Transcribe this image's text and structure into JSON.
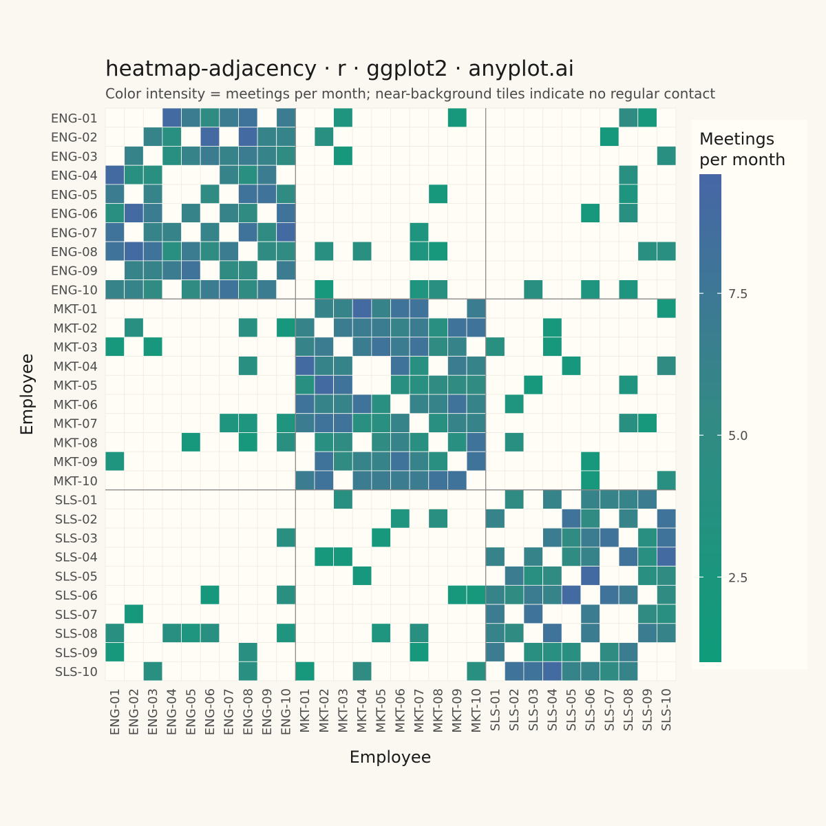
{
  "chart_data": {
    "type": "heatmap",
    "title": "heatmap-adjacency · r · ggplot2 · anyplot.ai",
    "subtitle": "Color intensity = meetings per month; near-background tiles indicate no regular contact",
    "xlabel": "Employee",
    "ylabel": "Employee",
    "labels": [
      "ENG-01",
      "ENG-02",
      "ENG-03",
      "ENG-04",
      "ENG-05",
      "ENG-06",
      "ENG-07",
      "ENG-08",
      "ENG-09",
      "ENG-10",
      "MKT-01",
      "MKT-02",
      "MKT-03",
      "MKT-04",
      "MKT-05",
      "MKT-06",
      "MKT-07",
      "MKT-08",
      "MKT-09",
      "MKT-10",
      "SLS-01",
      "SLS-02",
      "SLS-03",
      "SLS-04",
      "SLS-05",
      "SLS-06",
      "SLS-07",
      "SLS-08",
      "SLS-09",
      "SLS-10"
    ],
    "matrix": [
      [
        0,
        0,
        0,
        9,
        7,
        5,
        7,
        8,
        0,
        7,
        0,
        0,
        3,
        0,
        0,
        0,
        0,
        0,
        2,
        0,
        0,
        0,
        0,
        0,
        0,
        0,
        0,
        5,
        2,
        0
      ],
      [
        0,
        0,
        6,
        4,
        0,
        9,
        0,
        9,
        6,
        6,
        0,
        4,
        0,
        0,
        0,
        0,
        0,
        0,
        0,
        0,
        0,
        0,
        0,
        0,
        0,
        0,
        2,
        0,
        0,
        0
      ],
      [
        0,
        6,
        0,
        4,
        6,
        7,
        6,
        7,
        6,
        5,
        0,
        0,
        2,
        0,
        0,
        0,
        0,
        0,
        0,
        0,
        0,
        0,
        0,
        0,
        0,
        0,
        0,
        0,
        0,
        4
      ],
      [
        9,
        4,
        4,
        0,
        0,
        0,
        6,
        4,
        7,
        0,
        0,
        0,
        0,
        0,
        0,
        0,
        0,
        0,
        0,
        0,
        0,
        0,
        0,
        0,
        0,
        0,
        0,
        4,
        0,
        0
      ],
      [
        7,
        0,
        6,
        0,
        0,
        5,
        0,
        8,
        8,
        5,
        0,
        0,
        0,
        0,
        0,
        0,
        0,
        2,
        0,
        0,
        0,
        0,
        0,
        0,
        0,
        0,
        0,
        3,
        0,
        0
      ],
      [
        4,
        9,
        7,
        0,
        6,
        0,
        6,
        5,
        0,
        8,
        0,
        0,
        0,
        0,
        0,
        0,
        0,
        0,
        0,
        0,
        0,
        0,
        0,
        0,
        0,
        2,
        0,
        4,
        0,
        0
      ],
      [
        8,
        0,
        6,
        6,
        0,
        6,
        0,
        8,
        5,
        9,
        0,
        0,
        0,
        0,
        0,
        0,
        3,
        0,
        0,
        0,
        0,
        0,
        0,
        0,
        0,
        0,
        0,
        0,
        0,
        0
      ],
      [
        8,
        9,
        8,
        4,
        7,
        5,
        7,
        0,
        5,
        5,
        0,
        4,
        0,
        4,
        0,
        0,
        3,
        2,
        0,
        0,
        0,
        0,
        0,
        0,
        0,
        0,
        0,
        0,
        4,
        4
      ],
      [
        0,
        6,
        6,
        7,
        8,
        0,
        5,
        5,
        0,
        7,
        0,
        0,
        0,
        0,
        0,
        0,
        0,
        0,
        0,
        0,
        0,
        0,
        0,
        0,
        0,
        0,
        0,
        0,
        0,
        0
      ],
      [
        6,
        6,
        5,
        0,
        5,
        7,
        8,
        5,
        7,
        0,
        0,
        2,
        0,
        0,
        0,
        0,
        3,
        4,
        0,
        0,
        0,
        0,
        4,
        0,
        0,
        3,
        0,
        3,
        0,
        0
      ],
      [
        0,
        0,
        0,
        0,
        0,
        0,
        0,
        0,
        0,
        0,
        0,
        6,
        6,
        9,
        6,
        8,
        8,
        0,
        0,
        7,
        0,
        0,
        0,
        0,
        0,
        0,
        0,
        0,
        0,
        2
      ],
      [
        0,
        4,
        0,
        0,
        0,
        0,
        0,
        4,
        0,
        2,
        6,
        0,
        7,
        7,
        7,
        6,
        7,
        4,
        8,
        8,
        0,
        0,
        0,
        2,
        0,
        0,
        0,
        0,
        0,
        0
      ],
      [
        2,
        0,
        2,
        0,
        0,
        0,
        0,
        0,
        0,
        0,
        6,
        7,
        0,
        7,
        8,
        7,
        8,
        5,
        6,
        0,
        4,
        0,
        0,
        2,
        0,
        0,
        0,
        0,
        0,
        0
      ],
      [
        0,
        0,
        0,
        0,
        0,
        0,
        0,
        4,
        0,
        0,
        9,
        6,
        6,
        0,
        0,
        8,
        4,
        0,
        7,
        6,
        0,
        0,
        0,
        0,
        2,
        0,
        0,
        0,
        0,
        5
      ],
      [
        0,
        0,
        0,
        0,
        0,
        0,
        0,
        0,
        0,
        0,
        4,
        9,
        8,
        0,
        0,
        4,
        4,
        5,
        5,
        5,
        0,
        0,
        2,
        0,
        0,
        0,
        0,
        3,
        0,
        0
      ],
      [
        0,
        0,
        0,
        0,
        0,
        0,
        0,
        0,
        0,
        0,
        8,
        6,
        6,
        8,
        4,
        0,
        6,
        6,
        8,
        6,
        0,
        3,
        0,
        0,
        0,
        0,
        0,
        0,
        0,
        0
      ],
      [
        0,
        0,
        0,
        0,
        0,
        0,
        3,
        3,
        0,
        3,
        7,
        8,
        8,
        4,
        4,
        6,
        0,
        4,
        6,
        6,
        0,
        0,
        0,
        0,
        0,
        0,
        0,
        4,
        2,
        0
      ],
      [
        0,
        0,
        0,
        0,
        2,
        0,
        0,
        2,
        0,
        4,
        0,
        4,
        5,
        0,
        5,
        6,
        4,
        0,
        4,
        8,
        0,
        4,
        0,
        0,
        0,
        0,
        0,
        0,
        0,
        0
      ],
      [
        3,
        0,
        0,
        0,
        0,
        0,
        0,
        0,
        0,
        0,
        0,
        8,
        5,
        6,
        6,
        8,
        6,
        4,
        0,
        8,
        0,
        0,
        0,
        0,
        0,
        2,
        0,
        0,
        0,
        0
      ],
      [
        0,
        0,
        0,
        0,
        0,
        0,
        0,
        0,
        0,
        0,
        7,
        8,
        0,
        7,
        7,
        7,
        7,
        8,
        8,
        0,
        0,
        0,
        0,
        0,
        0,
        2,
        0,
        0,
        0,
        4
      ],
      [
        0,
        0,
        0,
        0,
        0,
        0,
        0,
        0,
        0,
        0,
        0,
        0,
        4,
        0,
        0,
        0,
        0,
        0,
        0,
        0,
        0,
        5,
        0,
        6,
        0,
        6,
        6,
        6,
        7,
        0
      ],
      [
        0,
        0,
        0,
        0,
        0,
        0,
        0,
        0,
        0,
        0,
        0,
        0,
        0,
        0,
        0,
        3,
        0,
        4,
        0,
        0,
        6,
        0,
        0,
        0,
        8,
        5,
        0,
        6,
        0,
        8
      ],
      [
        0,
        0,
        0,
        0,
        0,
        0,
        0,
        0,
        0,
        4,
        0,
        0,
        0,
        0,
        2,
        0,
        0,
        0,
        0,
        0,
        0,
        0,
        0,
        7,
        5,
        7,
        8,
        0,
        4,
        8
      ],
      [
        0,
        0,
        0,
        0,
        0,
        0,
        0,
        0,
        0,
        0,
        0,
        2,
        2,
        0,
        0,
        0,
        0,
        0,
        0,
        0,
        6,
        0,
        6,
        0,
        5,
        6,
        0,
        8,
        4,
        9
      ],
      [
        0,
        0,
        0,
        0,
        0,
        0,
        0,
        0,
        0,
        0,
        0,
        0,
        0,
        2,
        0,
        0,
        0,
        0,
        0,
        0,
        0,
        7,
        4,
        5,
        0,
        9,
        0,
        0,
        4,
        5
      ],
      [
        0,
        0,
        0,
        0,
        0,
        2,
        0,
        0,
        0,
        4,
        0,
        0,
        0,
        0,
        0,
        0,
        0,
        0,
        2,
        2,
        6,
        5,
        7,
        6,
        9,
        0,
        8,
        7,
        0,
        5
      ],
      [
        0,
        2,
        0,
        0,
        0,
        0,
        0,
        0,
        0,
        0,
        0,
        0,
        0,
        0,
        0,
        0,
        0,
        0,
        0,
        0,
        7,
        0,
        8,
        0,
        0,
        7,
        0,
        0,
        5,
        4
      ],
      [
        4,
        0,
        0,
        4,
        3,
        4,
        0,
        0,
        0,
        3,
        0,
        0,
        0,
        0,
        3,
        0,
        4,
        0,
        0,
        0,
        6,
        5,
        0,
        8,
        0,
        7,
        0,
        0,
        7,
        6
      ],
      [
        2,
        0,
        0,
        0,
        0,
        0,
        0,
        4,
        0,
        0,
        0,
        0,
        0,
        0,
        0,
        0,
        2,
        0,
        0,
        0,
        7,
        0,
        4,
        4,
        4,
        0,
        5,
        7,
        0,
        0
      ],
      [
        0,
        0,
        4,
        0,
        0,
        0,
        0,
        4,
        0,
        0,
        2,
        0,
        0,
        5,
        0,
        0,
        0,
        0,
        0,
        4,
        0,
        8,
        8,
        9,
        6,
        6,
        5,
        6,
        0,
        0
      ]
    ],
    "legend": {
      "title_line1": "Meetings",
      "title_line2": "per month",
      "ticks": [
        "2.5",
        "5.0",
        "7.5"
      ],
      "placement": "right"
    },
    "color_scale": {
      "low": "#0E9C7A",
      "mid": "#338A84",
      "high": "#4766A6",
      "min": 1,
      "max": 9.6
    },
    "groups": [
      "ENG",
      "MKT",
      "SLS"
    ]
  }
}
